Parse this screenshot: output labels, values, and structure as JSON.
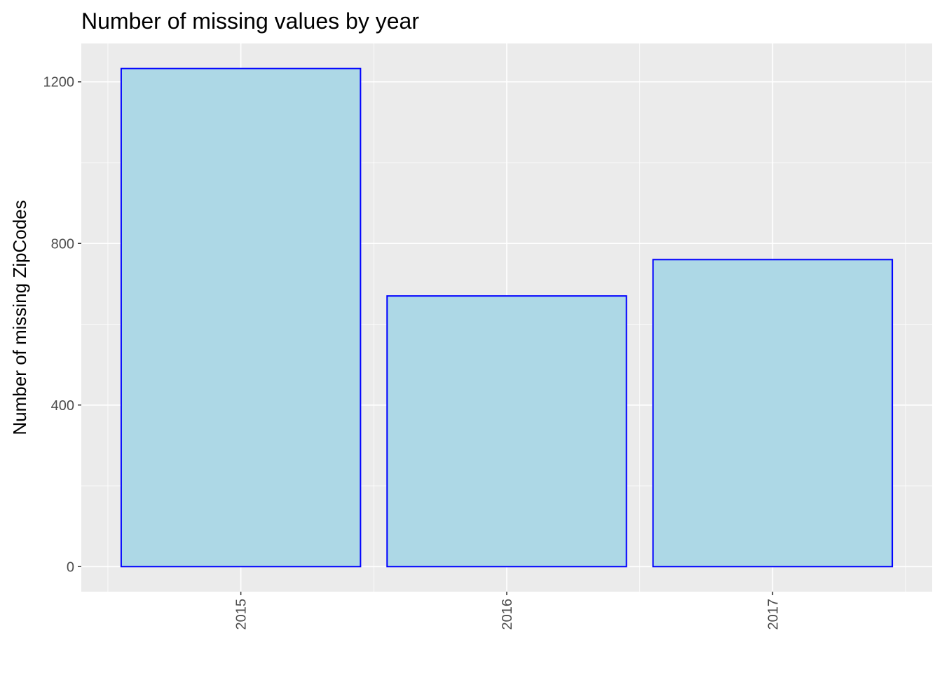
{
  "chart_data": {
    "type": "bar",
    "title": "Number of missing values by year",
    "xlabel": "",
    "ylabel": "Number of missing ZipCodes",
    "categories": [
      "2015",
      "2016",
      "2017"
    ],
    "values": [
      1233,
      670,
      760
    ],
    "ylim": [
      -62,
      1295
    ],
    "yticks": [
      0,
      400,
      800,
      1200
    ],
    "grid": true,
    "colors": {
      "panel_background": "#ebebeb",
      "grid": "#ffffff",
      "bar_fill": "#add8e6",
      "bar_outline": "#0000ff",
      "tick_label": "#4d4d4d",
      "tick_mark": "#333333"
    }
  }
}
